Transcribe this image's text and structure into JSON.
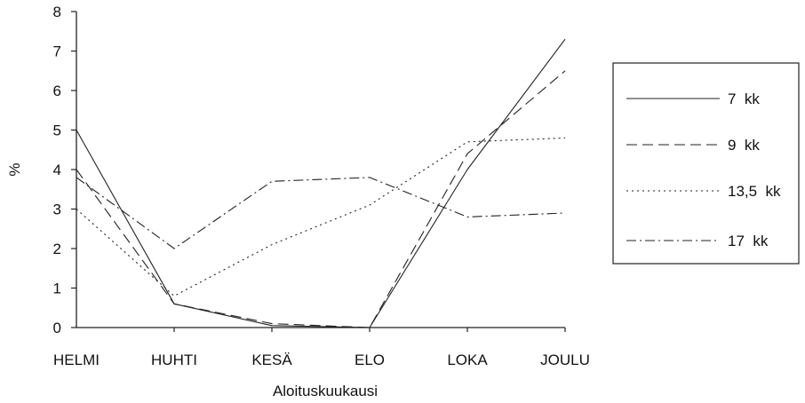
{
  "chart_data": {
    "type": "line",
    "title": "",
    "xlabel": "Aloituskuukausi",
    "ylabel": "%",
    "categories": [
      "HELMI",
      "HUHTI",
      "KESÄ",
      "ELO",
      "LOKA",
      "JOULU"
    ],
    "ylim": [
      0,
      8
    ],
    "yticks": [
      "0",
      "1",
      "2",
      "3",
      "4",
      "5",
      "6",
      "7",
      "8"
    ],
    "grid": false,
    "legend_position": "right",
    "series": [
      {
        "name": "7  kk",
        "style": "solid",
        "values": [
          5.0,
          0.6,
          0.05,
          0.0,
          4.0,
          7.3
        ]
      },
      {
        "name": "9  kk",
        "style": "dashed",
        "values": [
          4.0,
          0.6,
          0.1,
          0.0,
          4.4,
          6.5
        ]
      },
      {
        "name": "13,5  kk",
        "style": "dotted",
        "values": [
          3.0,
          0.8,
          2.1,
          3.1,
          4.7,
          4.8
        ]
      },
      {
        "name": "17  kk",
        "style": "dashdot",
        "values": [
          3.8,
          2.0,
          3.7,
          3.8,
          2.8,
          2.9
        ]
      }
    ],
    "line_color": "#222222"
  }
}
